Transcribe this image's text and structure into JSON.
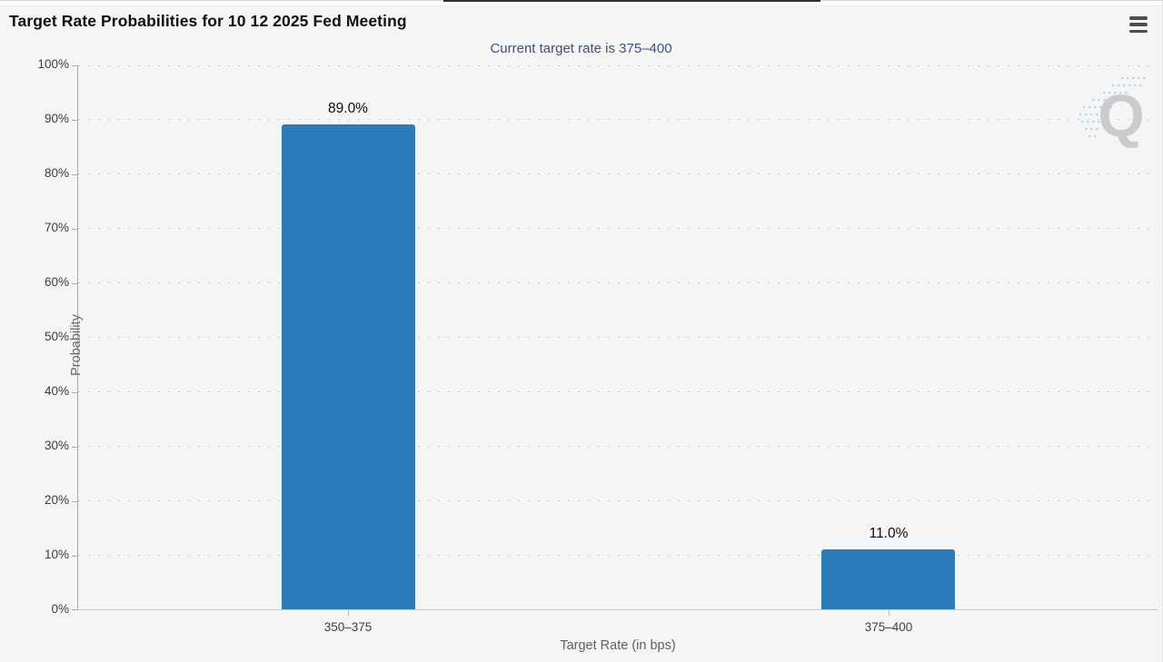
{
  "header": {
    "menu_icon": "hamburger-icon"
  },
  "chart_data": {
    "type": "bar",
    "title": "Target Rate Probabilities for 10 12 2025 Fed Meeting",
    "subtitle": "Current target rate is 375–400",
    "categories": [
      "350–375",
      "375–400"
    ],
    "values": [
      89.0,
      11.0
    ],
    "value_labels": [
      "89.0%",
      "11.0%"
    ],
    "xlabel": "Target Rate (in bps)",
    "ylabel": "Probability",
    "ylim": [
      0,
      100
    ],
    "ytick_labels": [
      "0%",
      "10%",
      "20%",
      "30%",
      "40%",
      "50%",
      "60%",
      "70%",
      "80%",
      "90%",
      "100%"
    ],
    "bar_color": "#2b7cb8",
    "grid": "dotted-horizontal",
    "legend": "none",
    "watermark_letter": "Q"
  }
}
